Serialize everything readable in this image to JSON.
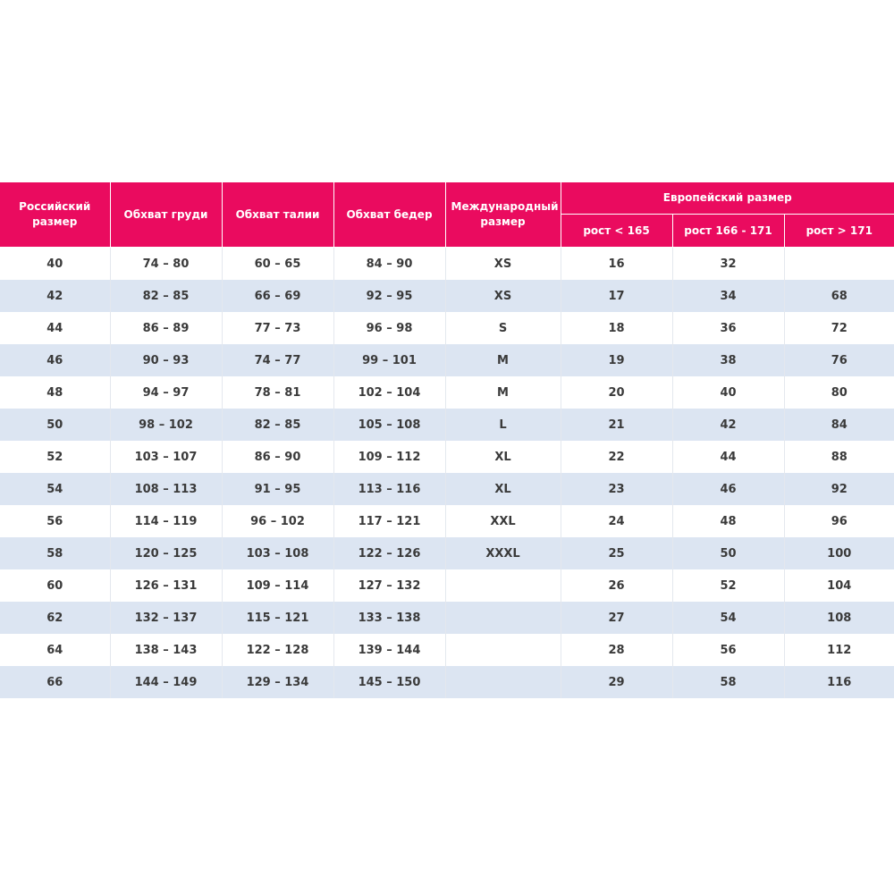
{
  "table": {
    "header": {
      "columns": [
        "Российский размер",
        "Обхват груди",
        "Обхват талии",
        "Обхват бедер",
        "Международный размер"
      ],
      "group": "Европейский размер",
      "subcolumns": [
        "рост < 165",
        "рост 166 - 171",
        "рост > 171"
      ]
    },
    "rows": [
      [
        "40",
        "74 – 80",
        "60 – 65",
        "84 – 90",
        "XS",
        "16",
        "32",
        null
      ],
      [
        "42",
        "82 – 85",
        "66 – 69",
        "92 – 95",
        "XS",
        "17",
        "34",
        "68"
      ],
      [
        "44",
        "86 – 89",
        "77 – 73",
        "96 – 98",
        "S",
        "18",
        "36",
        "72"
      ],
      [
        "46",
        "90 – 93",
        "74 – 77",
        "99 – 101",
        "M",
        "19",
        "38",
        "76"
      ],
      [
        "48",
        "94 – 97",
        "78 – 81",
        "102 – 104",
        "M",
        "20",
        "40",
        "80"
      ],
      [
        "50",
        "98 – 102",
        "82 – 85",
        "105 – 108",
        "L",
        "21",
        "42",
        "84"
      ],
      [
        "52",
        "103 – 107",
        "86 – 90",
        "109 – 112",
        "XL",
        "22",
        "44",
        "88"
      ],
      [
        "54",
        "108 – 113",
        "91 – 95",
        "113 – 116",
        "XL",
        "23",
        "46",
        "92"
      ],
      [
        "56",
        "114 – 119",
        "96 – 102",
        "117 – 121",
        "XXL",
        "24",
        "48",
        "96"
      ],
      [
        "58",
        "120 – 125",
        "103 – 108",
        "122 – 126",
        "XXXL",
        "25",
        "50",
        "100"
      ],
      [
        "60",
        "126 – 131",
        "109 – 114",
        "127 – 132",
        null,
        "26",
        "52",
        "104"
      ],
      [
        "62",
        "132 – 137",
        "115 – 121",
        "133 – 138",
        null,
        "27",
        "54",
        "108"
      ],
      [
        "64",
        "138 – 143",
        "122 – 128",
        "139 – 144",
        null,
        "28",
        "56",
        "112"
      ],
      [
        "66",
        "144 – 149",
        "129 – 134",
        "145 – 150",
        null,
        "29",
        "58",
        "116"
      ]
    ]
  }
}
